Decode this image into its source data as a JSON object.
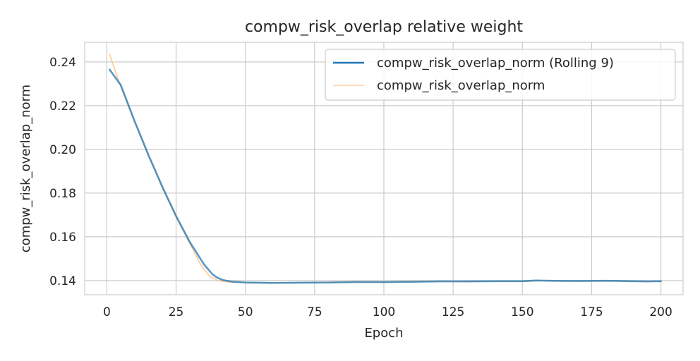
{
  "chart_data": {
    "type": "line",
    "title": "compw_risk_overlap relative weight",
    "xlabel": "Epoch",
    "ylabel": "compw_risk_overlap_norm",
    "xlim": [
      -8,
      208
    ],
    "ylim": [
      0.1335,
      0.249
    ],
    "xticks": [
      0,
      25,
      50,
      75,
      100,
      125,
      150,
      175,
      200
    ],
    "yticks": [
      0.14,
      0.16,
      0.18,
      0.2,
      0.22,
      0.24
    ],
    "ytick_labels": [
      "0.14",
      "0.16",
      "0.18",
      "0.20",
      "0.22",
      "0.24"
    ],
    "grid": true,
    "legend_position": "top-right",
    "series": [
      {
        "name": "compw_risk_overlap_norm (Rolling 9)",
        "color": "#1f77b4",
        "x": [
          1,
          5,
          10,
          15,
          20,
          25,
          30,
          35,
          38,
          40,
          42,
          45,
          50,
          60,
          70,
          80,
          90,
          100,
          110,
          120,
          130,
          140,
          150,
          155,
          160,
          165,
          170,
          175,
          180,
          185,
          190,
          195,
          200
        ],
        "y": [
          0.2365,
          0.2295,
          0.213,
          0.1975,
          0.183,
          0.1695,
          0.1575,
          0.1475,
          0.143,
          0.1412,
          0.1402,
          0.1395,
          0.1391,
          0.1389,
          0.139,
          0.1391,
          0.1393,
          0.1393,
          0.1394,
          0.1396,
          0.1396,
          0.1397,
          0.1397,
          0.14,
          0.1399,
          0.1398,
          0.1398,
          0.1398,
          0.1399,
          0.1398,
          0.1397,
          0.1396,
          0.1397
        ]
      },
      {
        "name": "compw_risk_overlap_norm",
        "color": "#ffbb78",
        "x": [
          1,
          3,
          5,
          10,
          15,
          20,
          25,
          30,
          34,
          37,
          40,
          42,
          45,
          50,
          60,
          70,
          80,
          90,
          100,
          110,
          120,
          130,
          140,
          150,
          155,
          160,
          165,
          170,
          175,
          180,
          185,
          190,
          195,
          200
        ],
        "y": [
          0.2435,
          0.236,
          0.229,
          0.2125,
          0.197,
          0.1825,
          0.169,
          0.1568,
          0.147,
          0.142,
          0.14,
          0.1396,
          0.1393,
          0.139,
          0.1389,
          0.1391,
          0.1392,
          0.1394,
          0.1392,
          0.1394,
          0.1397,
          0.1395,
          0.1397,
          0.1396,
          0.1401,
          0.1398,
          0.1399,
          0.1397,
          0.1399,
          0.14,
          0.1397,
          0.1396,
          0.1395,
          0.1398
        ]
      }
    ]
  }
}
